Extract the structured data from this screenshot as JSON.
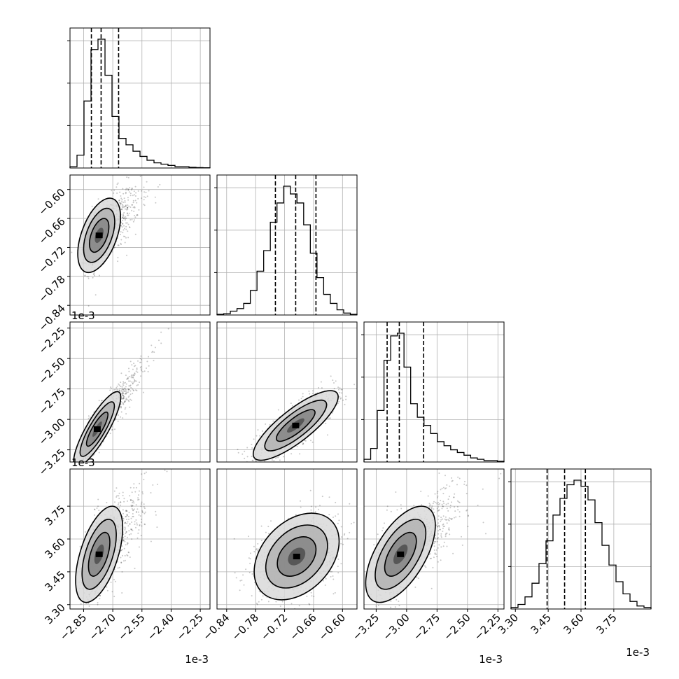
{
  "chart_data": {
    "type": "corner",
    "offset_text": "1e-3",
    "params": [
      {
        "range": [
          -2.92,
          -2.2
        ],
        "ticks": [
          -2.85,
          -2.7,
          -2.55,
          -2.4,
          -2.25
        ],
        "tick_labels": [
          "−2.85",
          "−2.70",
          "−2.55",
          "−2.40",
          "−2.25"
        ],
        "quantiles": [
          -2.81,
          -2.76,
          -2.67
        ],
        "hist": [
          1,
          10,
          52,
          92,
          100,
          72,
          40,
          23,
          18,
          13,
          9,
          6,
          4,
          3,
          2,
          1,
          1,
          0.5,
          0.3,
          0.2
        ]
      },
      {
        "range": [
          -0.86,
          -0.57
        ],
        "ticks": [
          -0.84,
          -0.78,
          -0.72,
          -0.66,
          -0.6
        ],
        "tick_labels": [
          "−0.84",
          "−0.78",
          "−0.72",
          "−0.66",
          "−0.60"
        ],
        "quantiles": [
          -0.739,
          -0.697,
          -0.655
        ],
        "hist": [
          0.5,
          1,
          3,
          5,
          9,
          19,
          34,
          50,
          72,
          87,
          100,
          94,
          87,
          70,
          48,
          29,
          16,
          9,
          4,
          1.5,
          0.5
        ]
      },
      {
        "range": [
          -3.35,
          -2.2
        ],
        "ticks": [
          -3.25,
          -3.0,
          -2.75,
          -2.5,
          -2.25
        ],
        "tick_labels": [
          "−3.25",
          "−3.00",
          "−2.75",
          "−2.50",
          "−2.25"
        ],
        "quantiles": [
          -3.16,
          -3.06,
          -2.86
        ],
        "hist": [
          2,
          10,
          38,
          75,
          93,
          95,
          70,
          43,
          33,
          27,
          21,
          15,
          12,
          9,
          7,
          5,
          3,
          2,
          1,
          1,
          0.5
        ]
      },
      {
        "range": [
          3.28,
          3.92
        ],
        "ticks": [
          3.3,
          3.45,
          3.6,
          3.75
        ],
        "tick_labels": [
          "3.30",
          "3.45",
          "3.60",
          "3.75"
        ],
        "quantiles": [
          3.445,
          3.525,
          3.62
        ],
        "hist": [
          1,
          3,
          8,
          17,
          30,
          45,
          62,
          73,
          82,
          85,
          81,
          72,
          57,
          42,
          29,
          18,
          10,
          5,
          2,
          1
        ]
      }
    ],
    "pairs": [
      {
        "row": 1,
        "col": 0,
        "mean": [
          -2.77,
          -0.695
        ],
        "sd": [
          0.05,
          0.035
        ],
        "rho": 0.5
      },
      {
        "row": 2,
        "col": 0,
        "mean": [
          -2.78,
          -3.08
        ],
        "sd": [
          0.055,
          0.14
        ],
        "rho": 0.85
      },
      {
        "row": 2,
        "col": 1,
        "mean": [
          -0.697,
          -3.05
        ],
        "sd": [
          0.04,
          0.13
        ],
        "rho": 0.82
      },
      {
        "row": 3,
        "col": 0,
        "mean": [
          -2.77,
          3.53
        ],
        "sd": [
          0.055,
          0.1
        ],
        "rho": 0.55
      },
      {
        "row": 3,
        "col": 1,
        "mean": [
          -0.695,
          3.52
        ],
        "sd": [
          0.04,
          0.09
        ],
        "rho": 0.35
      },
      {
        "row": 3,
        "col": 2,
        "mean": [
          -3.05,
          3.53
        ],
        "sd": [
          0.13,
          0.1
        ],
        "rho": 0.6
      }
    ],
    "hist_y_ticks": 3,
    "grid": true
  }
}
